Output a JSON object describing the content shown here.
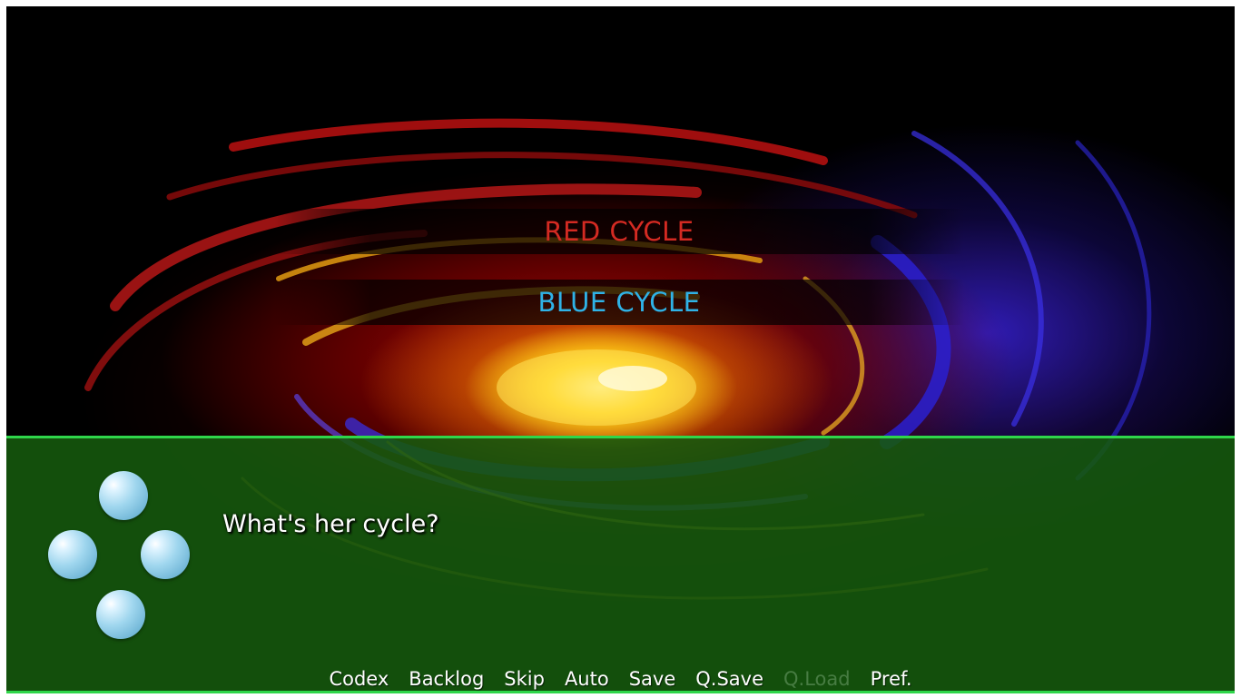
{
  "colors": {
    "red_choice": "#d42a22",
    "blue_choice": "#2fb2e6",
    "dialogue_bg": "#165a0e",
    "dialogue_border": "#2fd64a"
  },
  "choices": [
    {
      "label": "RED CYCLE",
      "color": "#d42a22"
    },
    {
      "label": "BLUE CYCLE",
      "color": "#2fb2e6"
    }
  ],
  "dialogue": {
    "text": "What's her cycle?",
    "side_icons": [
      "orb-up-icon",
      "orb-left-icon",
      "orb-right-icon",
      "orb-down-icon"
    ]
  },
  "quick_menu": {
    "codex": "Codex",
    "backlog": "Backlog",
    "skip": "Skip",
    "auto": "Auto",
    "save": "Save",
    "qsave": "Q.Save",
    "qload": "Q.Load",
    "pref": "Pref."
  }
}
